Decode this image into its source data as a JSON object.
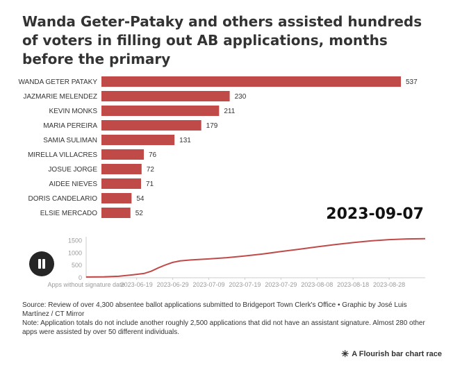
{
  "title": "Wanda Geter-Pataky and others assisted hundreds of voters in filling out AB applications, months before the primary",
  "current_date": "2023-09-07",
  "colors": {
    "bar": "#bf4a48",
    "line": "#bf4a48"
  },
  "chart_data": {
    "type": "bar",
    "orientation": "horizontal",
    "title": "Wanda Geter-Pataky and others assisted hundreds of voters in filling out AB applications, months before the primary",
    "categories": [
      "WANDA GETER PATAKY",
      "JAZMARIE MELENDEZ",
      "KEVIN MONKS",
      "MARIA PEREIRA",
      "SAMIA SULIMAN",
      "MIRELLA VILLACRES",
      "JOSUE JORGE",
      "AIDEE NIEVES",
      "DORIS CANDELARIO",
      "ELSIE MERCADO"
    ],
    "values": [
      537,
      230,
      211,
      179,
      131,
      76,
      72,
      71,
      54,
      52
    ],
    "xlim": [
      0,
      537
    ],
    "grid": false,
    "timeline": {
      "type": "line",
      "y_ticks": [
        0,
        500,
        1000,
        1500
      ],
      "ylim": [
        0,
        1600
      ],
      "x_tick_labels": [
        "Apps without signature date",
        "2023-06-19",
        "2023-06-29",
        "2023-07-09",
        "2023-07-19",
        "2023-07-29",
        "2023-08-08",
        "2023-08-18",
        "2023-08-28"
      ],
      "x_range": [
        "2023-06-05",
        "2023-09-07"
      ],
      "points": [
        [
          "2023-06-05",
          30
        ],
        [
          "2023-06-10",
          40
        ],
        [
          "2023-06-14",
          60
        ],
        [
          "2023-06-18",
          120
        ],
        [
          "2023-06-21",
          170
        ],
        [
          "2023-06-23",
          260
        ],
        [
          "2023-06-25",
          400
        ],
        [
          "2023-06-27",
          520
        ],
        [
          "2023-06-29",
          620
        ],
        [
          "2023-07-01",
          680
        ],
        [
          "2023-07-04",
          720
        ],
        [
          "2023-07-09",
          760
        ],
        [
          "2023-07-14",
          810
        ],
        [
          "2023-07-19",
          880
        ],
        [
          "2023-07-24",
          960
        ],
        [
          "2023-07-29",
          1060
        ],
        [
          "2023-08-03",
          1150
        ],
        [
          "2023-08-08",
          1250
        ],
        [
          "2023-08-13",
          1340
        ],
        [
          "2023-08-18",
          1420
        ],
        [
          "2023-08-23",
          1490
        ],
        [
          "2023-08-28",
          1540
        ],
        [
          "2023-09-02",
          1570
        ],
        [
          "2023-09-07",
          1580
        ]
      ]
    }
  },
  "footer": {
    "source": "Source: Review of over 4,300 absentee ballot applications submitted to Bridgeport Town Clerk's Office • Graphic by José Luis Martínez / CT Mirror",
    "note": "Note: Application totals do not include another roughly 2,500 applications that did not have an assistant signature. Almost 280 other apps were assisted by over 50 different individuals."
  },
  "branding": {
    "label": "A Flourish bar chart race",
    "icon": "flourish-asterisk-icon"
  }
}
